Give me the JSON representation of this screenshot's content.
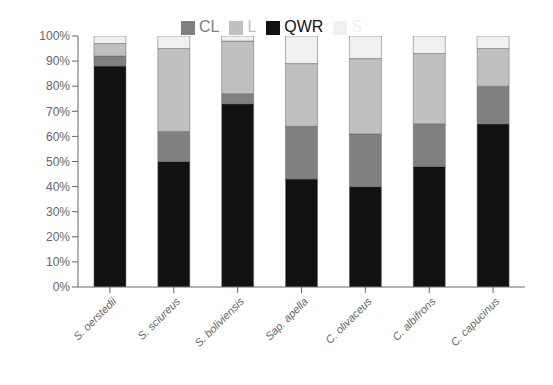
{
  "chart_data": {
    "type": "bar",
    "categories": [
      "S. oerstedii",
      "S. sciureus",
      "S. boliviensis",
      "Sap. apella",
      "C. olivaceus",
      "C. albifrons",
      "C. capucinus"
    ],
    "series": [
      {
        "name": "QWR",
        "color": "#111111",
        "values": [
          88,
          50,
          73,
          43,
          40,
          48,
          65
        ]
      },
      {
        "name": "CL",
        "color": "#808080",
        "values": [
          4,
          12,
          4,
          21,
          21,
          17,
          15
        ]
      },
      {
        "name": "L",
        "color": "#c0c0c0",
        "values": [
          5,
          33,
          21,
          25,
          30,
          28,
          15
        ]
      },
      {
        "name": "S",
        "color": "#f0f0f0",
        "values": [
          3,
          5,
          2,
          11,
          9,
          7,
          5
        ]
      }
    ],
    "ylim": [
      0,
      100
    ],
    "yticks": [
      {
        "value": 0,
        "label": "0%"
      },
      {
        "value": 10,
        "label": "10%"
      },
      {
        "value": 20,
        "label": "20%"
      },
      {
        "value": 30,
        "label": "30%"
      },
      {
        "value": 40,
        "label": "40%"
      },
      {
        "value": 50,
        "label": "50%"
      },
      {
        "value": 60,
        "label": "60%"
      },
      {
        "value": 70,
        "label": "70%"
      },
      {
        "value": 80,
        "label": "80%"
      },
      {
        "value": 90,
        "label": "90%"
      },
      {
        "value": 100,
        "label": "100%"
      }
    ],
    "stacked": true,
    "grid": false,
    "legend": "top"
  }
}
